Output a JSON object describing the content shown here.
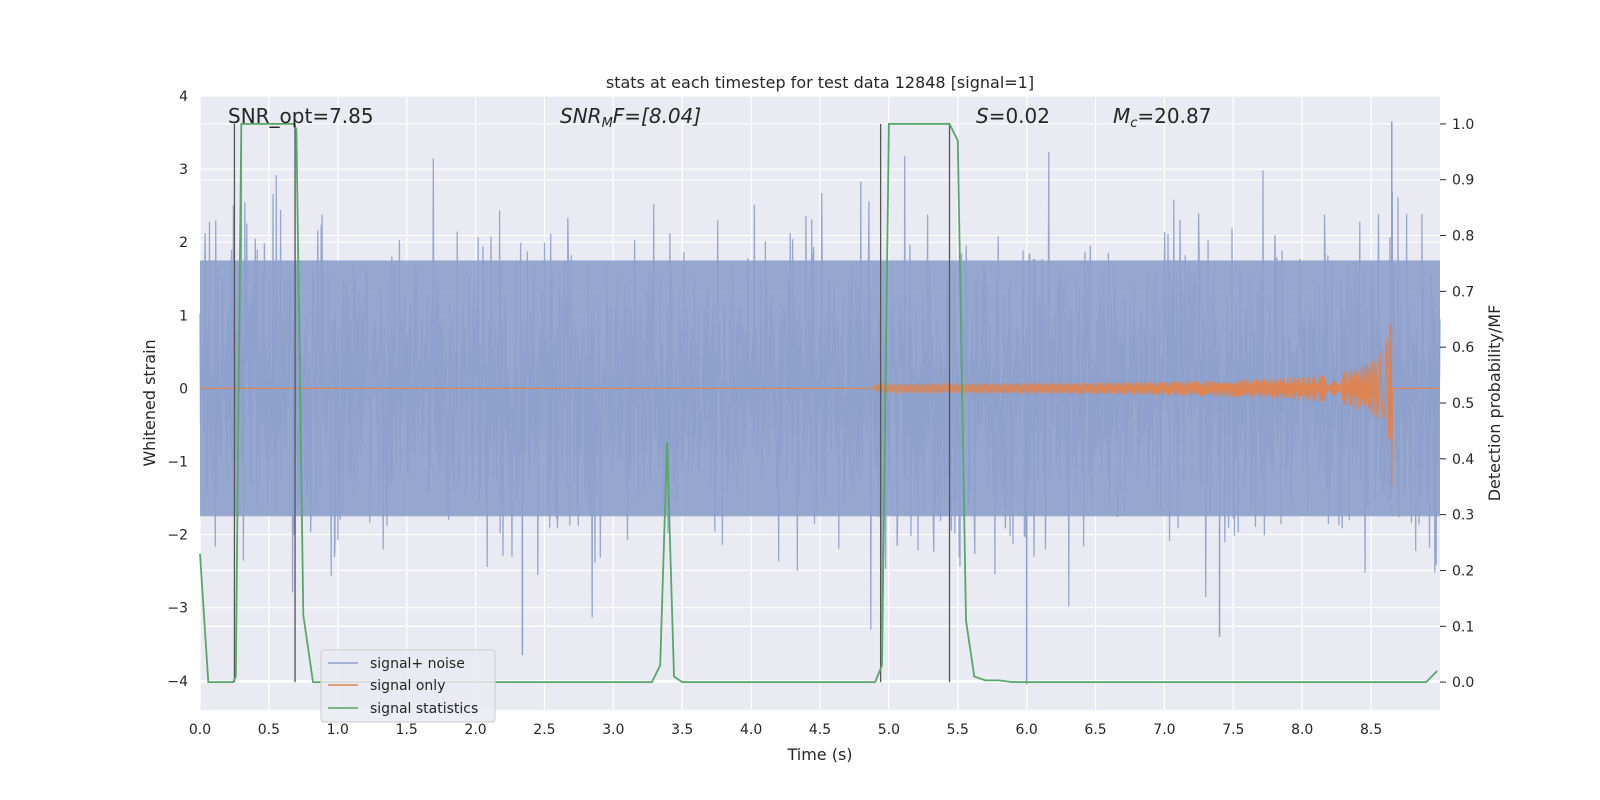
{
  "chart_data": {
    "type": "line",
    "title": "stats at each timestep for test data 12848 [signal=1]",
    "xlabel": "Time (s)",
    "ylabel_left": "Whitened strain",
    "ylabel_right": "Detection probability/MF",
    "xlim": [
      0,
      9.0
    ],
    "ylim_left": [
      -4.4,
      4.0
    ],
    "ylim_right": [
      -0.05,
      1.05
    ],
    "xticks": [
      0.0,
      0.5,
      1.0,
      1.5,
      2.0,
      2.5,
      3.0,
      3.5,
      4.0,
      4.5,
      5.0,
      5.5,
      6.0,
      6.5,
      7.0,
      7.5,
      8.0,
      8.5
    ],
    "xtick_labels": [
      "0.0",
      "0.5",
      "1.0",
      "1.5",
      "2.0",
      "2.5",
      "3.0",
      "3.5",
      "4.0",
      "4.5",
      "5.0",
      "5.5",
      "6.0",
      "6.5",
      "7.0",
      "7.5",
      "8.0",
      "8.5"
    ],
    "yticks_left": [
      4,
      3,
      2,
      1,
      0,
      -1,
      -2,
      -3,
      -4
    ],
    "ytick_labels_left": [
      "4",
      "3",
      "2",
      "1",
      "0",
      "−1",
      "−2",
      "−3",
      "−4"
    ],
    "yticks_right": [
      1.0,
      0.9,
      0.8,
      0.7,
      0.6,
      0.5,
      0.4,
      0.3,
      0.2,
      0.1,
      0.0
    ],
    "ytick_labels_right": [
      "1.0",
      "0.9",
      "0.8",
      "0.7",
      "0.6",
      "0.5",
      "0.4",
      "0.3",
      "0.2",
      "0.1",
      "0.0"
    ],
    "grid": true,
    "background": "#eaeaf2",
    "annotations": {
      "snr_opt": "SNR_opt=7.85",
      "snr_mf_main": "SNR",
      "snr_mf_sub": "M",
      "snr_mf_rest": "F=[8.04]",
      "s_main": "S",
      "s_rest": "=0.02",
      "mc_main": "M",
      "mc_sub": "c",
      "mc_rest": "=20.87"
    },
    "legend": {
      "placement": "lower-left",
      "entries": [
        {
          "label": "signal+ noise",
          "color": "#8da0cb"
        },
        {
          "label": "signal only",
          "color": "#dd8452"
        },
        {
          "label": "signal statistics",
          "color": "#55a868"
        }
      ]
    },
    "series": [
      {
        "name": "signal+ noise",
        "color": "#8da0cb",
        "axis": "left",
        "description_values": {
          "band_abs": 1.75,
          "spike_range": [
            -3.65,
            3.65
          ],
          "notable_spikes": [
            [
              2.34,
              -3.65
            ],
            [
              6.0,
              -4.05
            ],
            [
              8.65,
              3.65
            ],
            [
              7.4,
              -3.4
            ],
            [
              0.3,
              3.6
            ],
            [
              4.95,
              -3.3
            ]
          ]
        }
      },
      {
        "name": "signal only",
        "color": "#dd8452",
        "axis": "left",
        "chirp_start": 4.9,
        "chirp_end": 8.65,
        "chirp_peak_amplitude": 1.35
      },
      {
        "name": "signal statistics",
        "color": "#55a868",
        "axis": "right",
        "x": [
          0.0,
          0.06,
          0.12,
          0.24,
          0.26,
          0.3,
          0.4,
          0.5,
          0.6,
          0.68,
          0.7,
          0.75,
          0.82,
          0.9,
          1.0,
          2.0,
          3.0,
          3.28,
          3.34,
          3.39,
          3.44,
          3.5,
          4.0,
          4.5,
          4.9,
          4.95,
          5.0,
          5.2,
          5.4,
          5.44,
          5.5,
          5.56,
          5.62,
          5.7,
          5.8,
          5.9,
          6.0,
          7.0,
          8.0,
          8.9,
          8.98
        ],
        "y": [
          0.23,
          0.0,
          0.0,
          0.0,
          0.01,
          1.0,
          1.0,
          1.0,
          1.0,
          1.0,
          0.99,
          0.12,
          0.0,
          0.0,
          0.0,
          0.0,
          0.0,
          0.0,
          0.03,
          0.43,
          0.01,
          0.0,
          0.0,
          0.0,
          0.0,
          0.03,
          1.0,
          1.0,
          1.0,
          1.0,
          0.97,
          0.11,
          0.01,
          0.003,
          0.003,
          0.0,
          0.0,
          0.0,
          0.0,
          0.0,
          0.02
        ]
      }
    ],
    "vertical_markers": [
      {
        "x": 0.25,
        "y_bottom": 0.0,
        "y_top": 1.0
      },
      {
        "x": 0.69,
        "y_bottom": 0.0,
        "y_top": 1.0
      },
      {
        "x": 4.94,
        "y_bottom": 0.0,
        "y_top": 1.0
      },
      {
        "x": 5.44,
        "y_bottom": 0.0,
        "y_top": 1.0
      }
    ]
  }
}
